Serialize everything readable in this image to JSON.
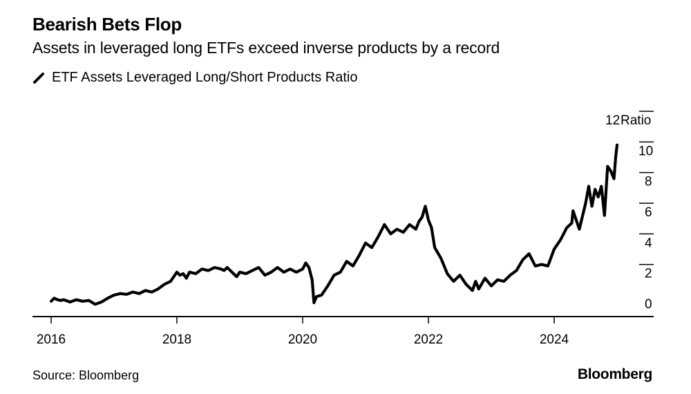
{
  "header": {
    "title": "Bearish Bets Flop",
    "subtitle": "Assets in leveraged long ETFs exceed inverse products by a record"
  },
  "footer": {
    "source": "Source: Bloomberg",
    "brand": "Bloomberg"
  },
  "colors": {
    "line": "#000000",
    "axis": "#000000",
    "background": "#ffffff"
  },
  "chart_data": {
    "type": "line",
    "title": "Bearish Bets Flop",
    "subtitle": "Assets in leveraged long ETFs exceed inverse products by a record",
    "xlabel": "",
    "ylabel": "Ratio",
    "xlim": [
      2016.0,
      2025.6
    ],
    "ylim": [
      0,
      12
    ],
    "x_ticks": [
      2016,
      2018,
      2020,
      2022,
      2024
    ],
    "x_tick_labels": [
      "2016",
      "2018",
      "2020",
      "2022",
      "2024"
    ],
    "y_ticks": [
      0,
      2,
      4,
      6,
      8,
      10,
      12
    ],
    "y_tick_labels": [
      "0",
      "2",
      "4",
      "6",
      "8",
      "10",
      "12"
    ],
    "y_unit_label": "Ratio",
    "legend": {
      "position": "top-left"
    },
    "grid": false,
    "series": [
      {
        "name": "ETF Assets Leveraged Long/Short Products Ratio",
        "x": [
          2016.0,
          2016.05,
          2016.1,
          2016.15,
          2016.2,
          2016.3,
          2016.4,
          2016.5,
          2016.6,
          2016.7,
          2016.8,
          2016.9,
          2017.0,
          2017.1,
          2017.2,
          2017.3,
          2017.4,
          2017.5,
          2017.6,
          2017.7,
          2017.8,
          2017.9,
          2018.0,
          2018.05,
          2018.1,
          2018.15,
          2018.2,
          2018.3,
          2018.4,
          2018.5,
          2018.6,
          2018.7,
          2018.75,
          2018.8,
          2018.9,
          2018.95,
          2019.0,
          2019.1,
          2019.2,
          2019.3,
          2019.4,
          2019.5,
          2019.6,
          2019.7,
          2019.8,
          2019.9,
          2020.0,
          2020.05,
          2020.1,
          2020.15,
          2020.18,
          2020.22,
          2020.3,
          2020.4,
          2020.5,
          2020.6,
          2020.7,
          2020.8,
          2020.9,
          2021.0,
          2021.1,
          2021.2,
          2021.3,
          2021.4,
          2021.5,
          2021.6,
          2021.7,
          2021.8,
          2021.85,
          2021.9,
          2021.95,
          2022.0,
          2022.05,
          2022.1,
          2022.2,
          2022.3,
          2022.4,
          2022.5,
          2022.6,
          2022.7,
          2022.75,
          2022.8,
          2022.9,
          2023.0,
          2023.1,
          2023.2,
          2023.3,
          2023.4,
          2023.5,
          2023.6,
          2023.7,
          2023.8,
          2023.9,
          2024.0,
          2024.1,
          2024.2,
          2024.28,
          2024.3,
          2024.4,
          2024.5,
          2024.55,
          2024.6,
          2024.65,
          2024.7,
          2024.75,
          2024.8,
          2024.85,
          2024.9,
          2024.95,
          2024.98,
          2025.0
        ],
        "values": [
          0.1,
          0.3,
          0.2,
          0.15,
          0.2,
          0.05,
          0.2,
          0.1,
          0.15,
          -0.1,
          0.05,
          0.3,
          0.5,
          0.6,
          0.55,
          0.7,
          0.6,
          0.8,
          0.7,
          0.9,
          1.2,
          1.4,
          2.0,
          1.8,
          1.9,
          1.6,
          2.0,
          1.9,
          2.2,
          2.1,
          2.3,
          2.2,
          2.1,
          2.3,
          1.9,
          1.7,
          2.0,
          1.9,
          2.1,
          2.3,
          1.8,
          2.0,
          2.3,
          2.0,
          2.2,
          2.0,
          2.2,
          2.6,
          2.3,
          1.5,
          0.0,
          0.4,
          0.5,
          1.1,
          1.8,
          2.0,
          2.7,
          2.4,
          3.1,
          3.9,
          3.6,
          4.3,
          5.1,
          4.5,
          4.8,
          4.6,
          5.1,
          4.8,
          5.3,
          5.6,
          6.3,
          5.4,
          4.9,
          3.6,
          2.9,
          1.9,
          1.4,
          1.8,
          1.2,
          0.8,
          1.4,
          0.9,
          1.6,
          1.1,
          1.5,
          1.4,
          1.8,
          2.1,
          2.8,
          3.2,
          2.4,
          2.5,
          2.4,
          3.5,
          4.1,
          4.9,
          5.2,
          6.0,
          4.8,
          6.5,
          7.6,
          6.3,
          7.4,
          6.9,
          7.6,
          5.7,
          8.9,
          8.6,
          8.1,
          9.6,
          10.3
        ]
      }
    ]
  }
}
